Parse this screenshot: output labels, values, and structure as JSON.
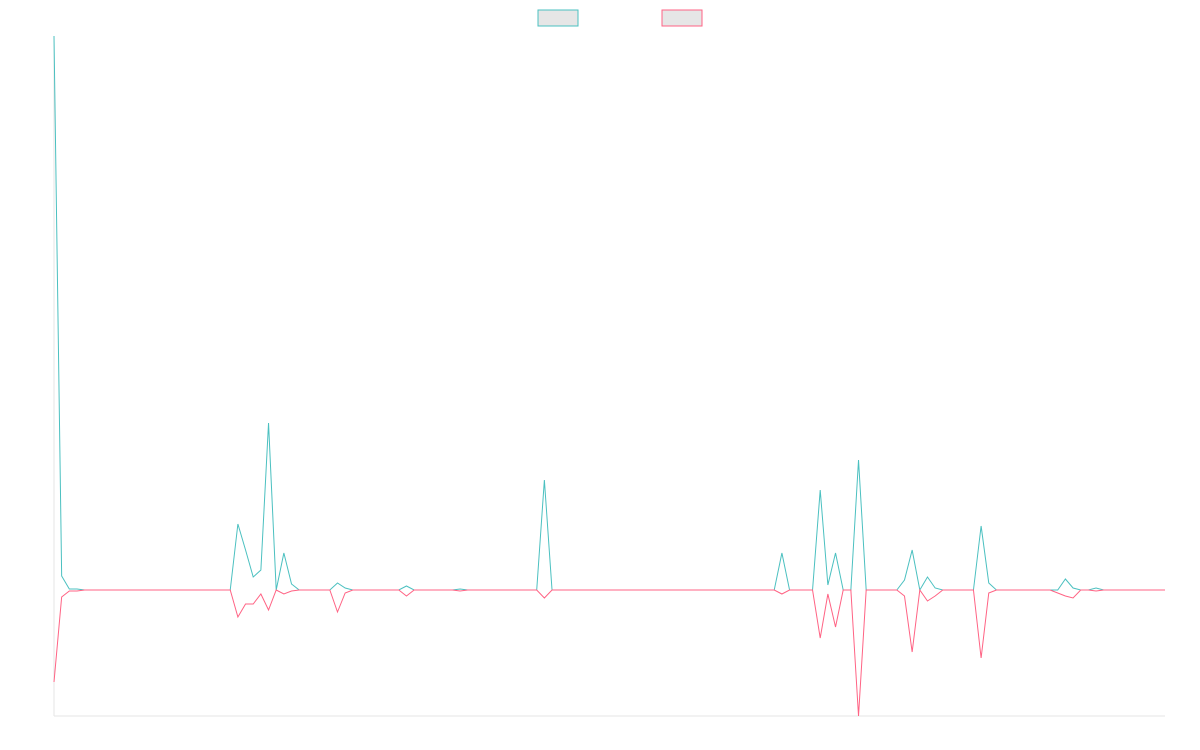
{
  "chart_data": {
    "type": "line",
    "ylim": [
      -126,
      554
    ],
    "grid": false,
    "legend": "top",
    "series": [
      {
        "color": "#4bc0c0",
        "values": [
          554,
          14,
          1,
          1,
          0,
          0,
          0,
          0,
          0,
          0,
          0,
          0,
          0,
          0,
          0,
          0,
          0,
          0,
          0,
          0,
          0,
          0,
          0,
          0,
          66,
          40,
          13,
          20,
          167,
          0,
          37,
          6,
          0,
          0,
          0,
          0,
          0,
          7,
          2,
          0,
          0,
          0,
          0,
          0,
          0,
          0,
          4,
          0,
          0,
          0,
          0,
          0,
          0,
          1,
          0,
          0,
          0,
          0,
          0,
          0,
          0,
          0,
          0,
          0,
          110,
          0,
          0,
          0,
          0,
          0,
          0,
          0,
          0,
          0,
          0,
          0,
          0,
          0,
          0,
          0,
          0,
          0,
          0,
          0,
          0,
          0,
          0,
          0,
          0,
          0,
          0,
          0,
          0,
          0,
          0,
          37,
          0,
          0,
          0,
          0,
          100,
          5,
          37,
          0,
          0,
          130,
          0,
          0,
          0,
          0,
          0,
          10,
          40,
          0,
          13,
          2,
          0,
          0,
          0,
          0,
          0,
          64,
          7,
          0,
          0,
          0,
          0,
          0,
          0,
          0,
          0,
          0,
          11,
          2,
          0,
          0,
          2,
          0,
          0,
          0,
          0,
          0,
          0,
          0,
          0,
          0
        ]
      },
      {
        "color": "#ff6384",
        "values": [
          -92,
          -7,
          -1,
          -1,
          0,
          0,
          0,
          0,
          0,
          0,
          0,
          0,
          0,
          0,
          0,
          0,
          0,
          0,
          0,
          0,
          0,
          0,
          0,
          0,
          -27,
          -14,
          -14,
          -4,
          -20,
          0,
          -4,
          -1,
          0,
          0,
          0,
          0,
          0,
          -22,
          -3,
          0,
          0,
          0,
          0,
          0,
          0,
          0,
          -6,
          0,
          0,
          0,
          0,
          0,
          0,
          -1,
          0,
          0,
          0,
          0,
          0,
          0,
          0,
          0,
          0,
          0,
          -8,
          0,
          0,
          0,
          0,
          0,
          0,
          0,
          0,
          0,
          0,
          0,
          0,
          0,
          0,
          0,
          0,
          0,
          0,
          0,
          0,
          0,
          0,
          0,
          0,
          0,
          0,
          0,
          0,
          0,
          0,
          -4,
          0,
          0,
          0,
          0,
          -48,
          -4,
          -37,
          0,
          0,
          -126,
          0,
          0,
          0,
          0,
          0,
          -6,
          -62,
          0,
          -11,
          -6,
          0,
          0,
          0,
          0,
          0,
          -68,
          -3,
          0,
          0,
          0,
          0,
          0,
          0,
          0,
          0,
          -3,
          -6,
          -8,
          0,
          0,
          -1,
          0,
          0,
          0,
          0,
          0,
          0,
          0,
          0,
          0
        ]
      }
    ]
  }
}
